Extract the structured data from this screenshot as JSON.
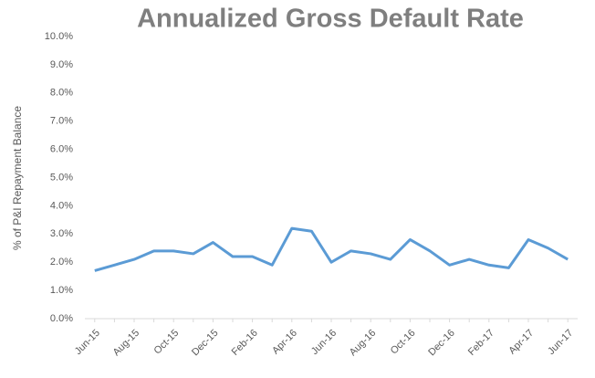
{
  "chart_data": {
    "type": "line",
    "title": "Annualized Gross Default Rate",
    "y_label": "% of P&I Repayment Balance",
    "categories": [
      "Jun-15",
      null,
      "Aug-15",
      null,
      "Oct-15",
      null,
      "Dec-15",
      null,
      "Feb-16",
      null,
      "Apr-16",
      null,
      "Jun-16",
      null,
      "Aug-16",
      null,
      "Oct-16",
      null,
      "Dec-16",
      null,
      "Feb-17",
      null,
      "Apr-17",
      null,
      "Jun-17"
    ],
    "series": [
      {
        "name": "Annualized Gross Default Rate",
        "color": "#5b9bd5",
        "values": [
          1.7,
          1.9,
          2.1,
          2.4,
          2.4,
          2.3,
          2.7,
          2.2,
          2.2,
          1.9,
          3.2,
          3.1,
          2.0,
          2.4,
          2.3,
          2.1,
          2.8,
          2.4,
          1.9,
          2.1,
          1.9,
          1.8,
          2.8,
          2.5,
          2.1
        ]
      }
    ],
    "ylim": [
      0,
      10
    ],
    "yticks": [
      {
        "value": 0,
        "label": "0.0%"
      },
      {
        "value": 1,
        "label": "1.0%"
      },
      {
        "value": 2,
        "label": "2.0%"
      },
      {
        "value": 3,
        "label": "3.0%"
      },
      {
        "value": 4,
        "label": "4.0%"
      },
      {
        "value": 5,
        "label": "5.0%"
      },
      {
        "value": 6,
        "label": "6.0%"
      },
      {
        "value": 7,
        "label": "7.0%"
      },
      {
        "value": 8,
        "label": "8.0%"
      },
      {
        "value": 9,
        "label": "9.0%"
      },
      {
        "value": 10,
        "label": "10.0%"
      }
    ],
    "grid": false
  }
}
